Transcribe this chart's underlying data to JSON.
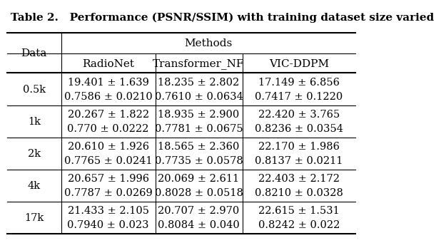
{
  "title": "Table 2.   Performance (PSNR/SSIM) with training dataset size varied",
  "col_header_top": "Methods",
  "col_headers": [
    "RadioNet",
    "Transformer_NF",
    "VIC-DDPM"
  ],
  "row_header": "Data",
  "rows": [
    {
      "label": "0.5k",
      "radionet": "19.401 ± 1.639\n0.7586 ± 0.0210",
      "transformer_nf": "18.235 ± 2.802\n0.7610 ± 0.0634",
      "vic_ddpm": "17.149 ± 6.856\n0.7417 ± 0.1220"
    },
    {
      "label": "1k",
      "radionet": "20.267 ± 1.822\n0.770 ± 0.0222",
      "transformer_nf": "18.935 ± 2.900\n0.7781 ± 0.0675",
      "vic_ddpm": "22.420 ± 3.765\n0.8236 ± 0.0354"
    },
    {
      "label": "2k",
      "radionet": "20.610 ± 1.926\n0.7765 ± 0.0241",
      "transformer_nf": "18.565 ± 2.360\n0.7735 ± 0.0578",
      "vic_ddpm": "22.170 ± 1.986\n0.8137 ± 0.0211"
    },
    {
      "label": "4k",
      "radionet": "20.657 ± 1.996\n0.7787 ± 0.0269",
      "transformer_nf": "20.069 ± 2.611\n0.8028 ± 0.0518",
      "vic_ddpm": "22.403 ± 2.172\n0.8210 ± 0.0328"
    },
    {
      "label": "17k",
      "radionet": "21.433 ± 2.105\n0.7940 ± 0.023",
      "transformer_nf": "20.707 ± 2.970\n0.8084 ± 0.040",
      "vic_ddpm": "22.615 ± 1.531\n0.8242 ± 0.022"
    }
  ],
  "bg_color": "#ffffff",
  "text_color": "#000000",
  "font_size": 10.5,
  "header_font_size": 11,
  "title_font_size": 11
}
